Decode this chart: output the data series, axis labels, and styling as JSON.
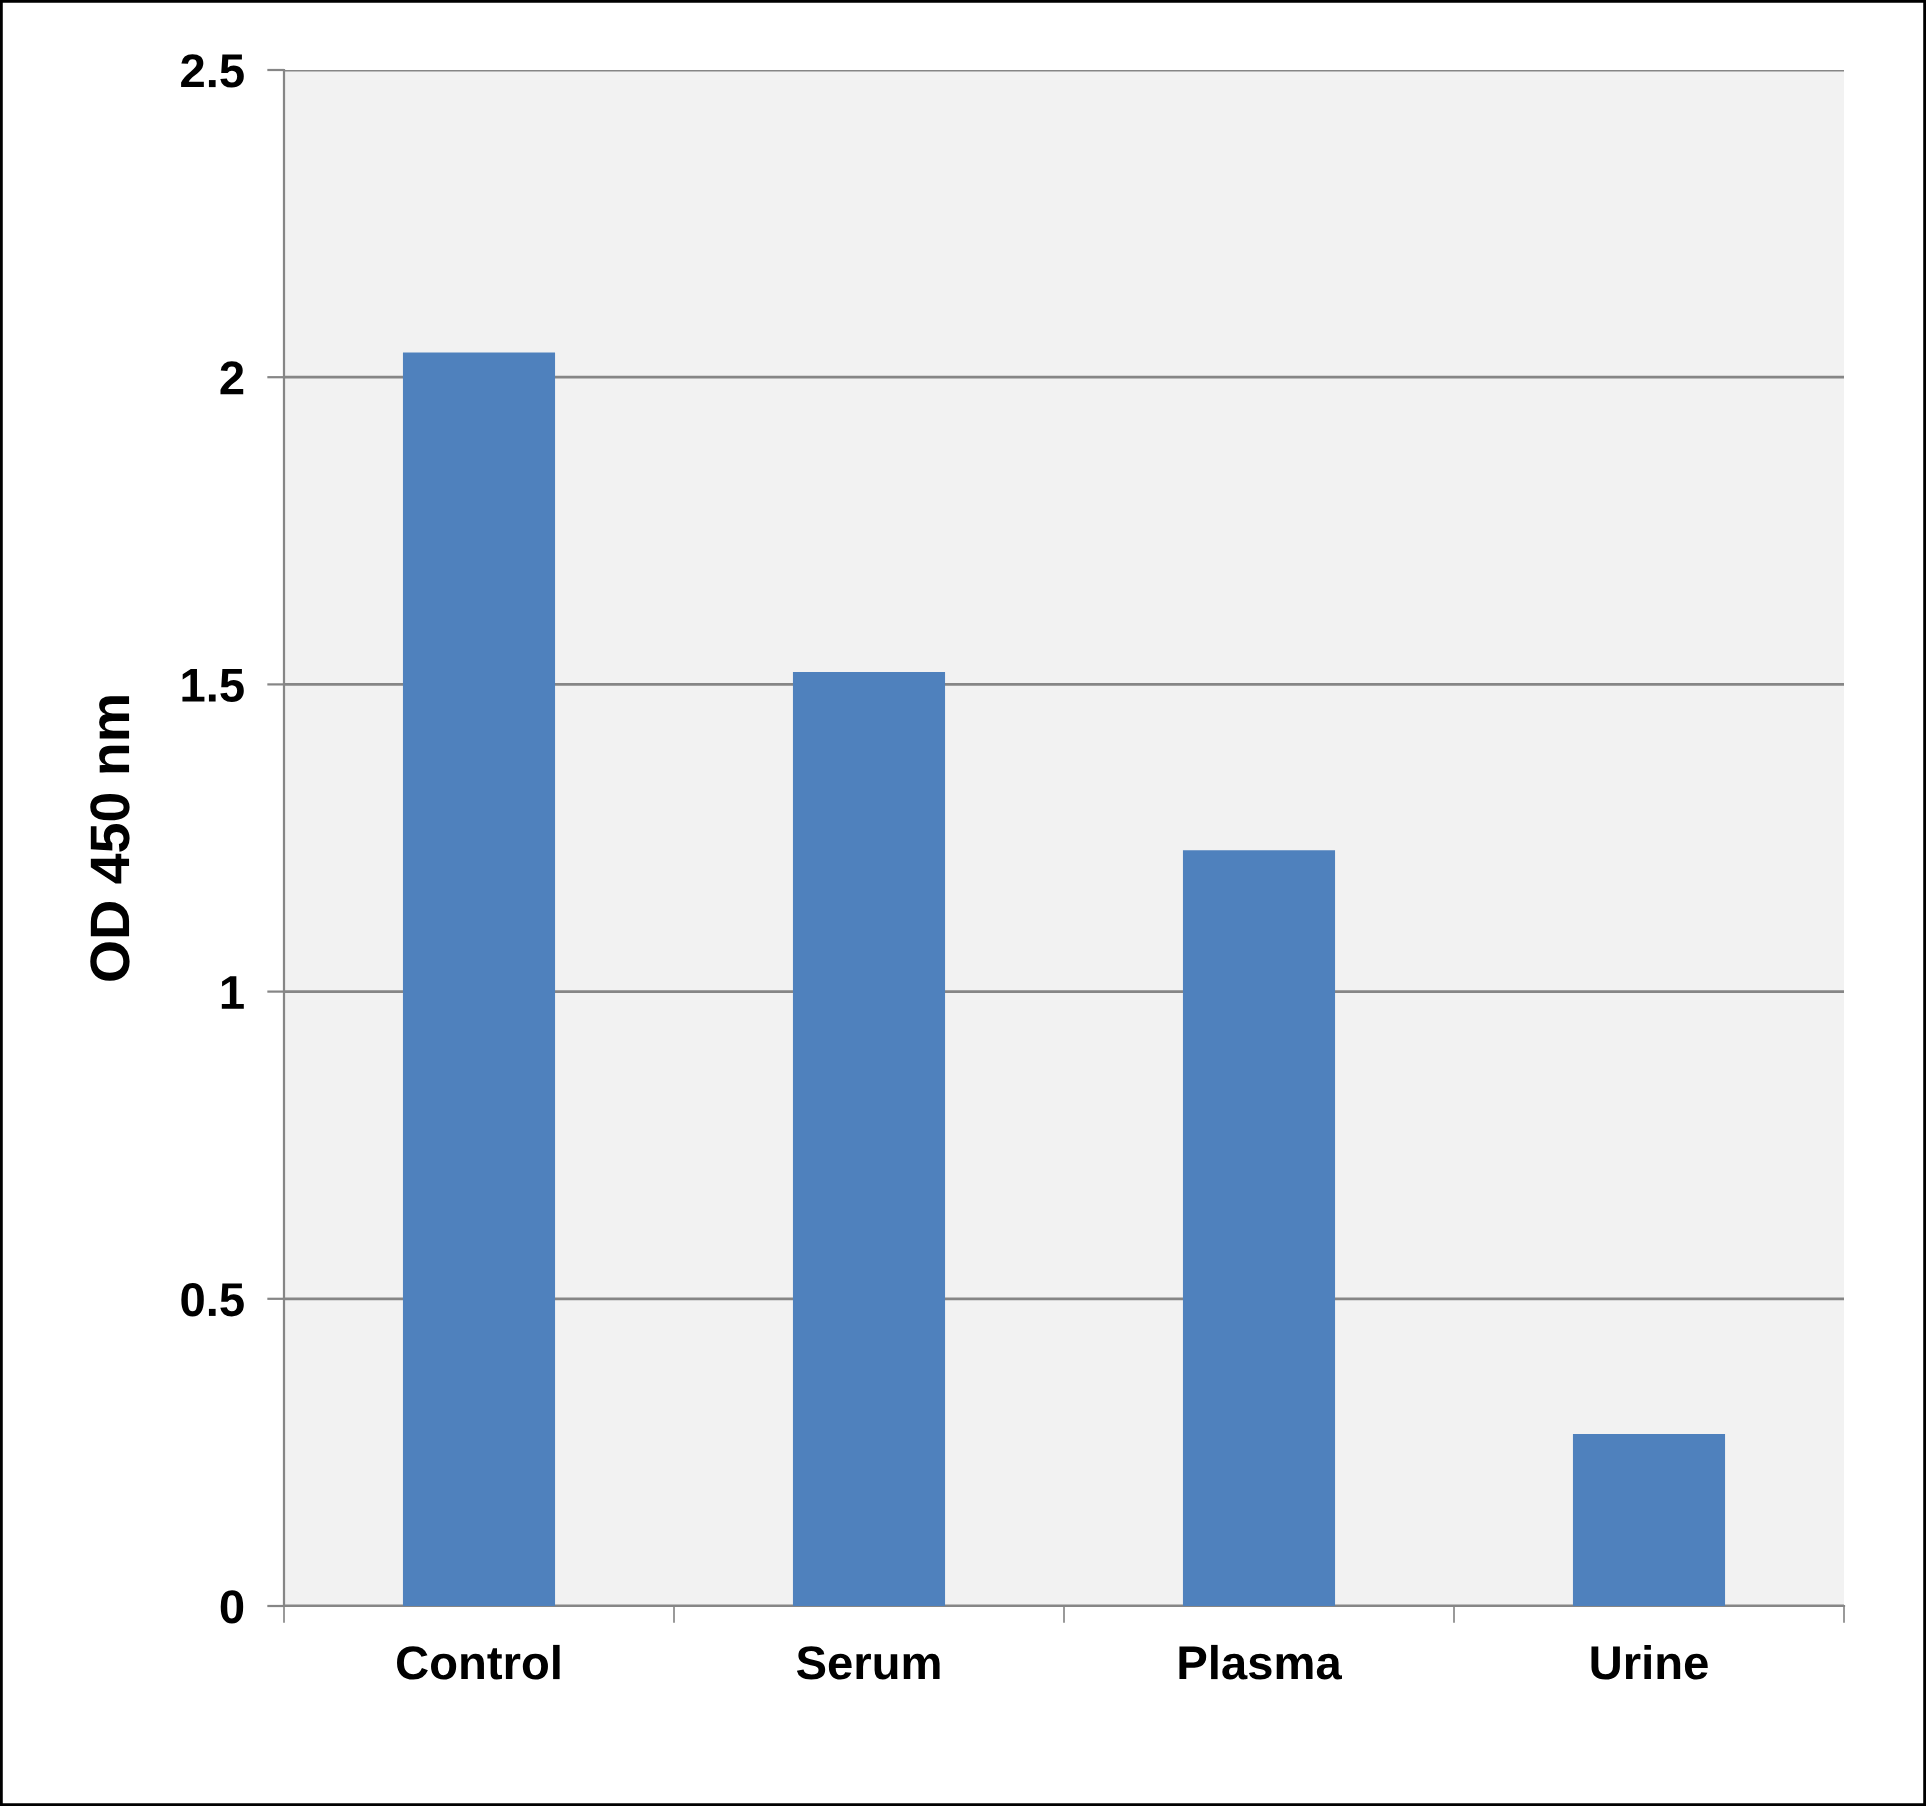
{
  "chart_data": {
    "type": "bar",
    "ylabel": "OD 450 nm",
    "categories": [
      "Control",
      "Serum",
      "Plasma",
      "Urine"
    ],
    "values": [
      2.04,
      1.52,
      1.23,
      0.28
    ],
    "color": "#4f81bd",
    "ylim": [
      0,
      2.5
    ],
    "yticks": [
      {
        "value": 0,
        "label": "0"
      },
      {
        "value": 0.5,
        "label": "0.5"
      },
      {
        "value": 1,
        "label": "1"
      },
      {
        "value": 1.5,
        "label": "1.5"
      },
      {
        "value": 2,
        "label": "2"
      },
      {
        "value": 2.5,
        "label": "2.5"
      }
    ],
    "grid": "y",
    "legend": false
  }
}
